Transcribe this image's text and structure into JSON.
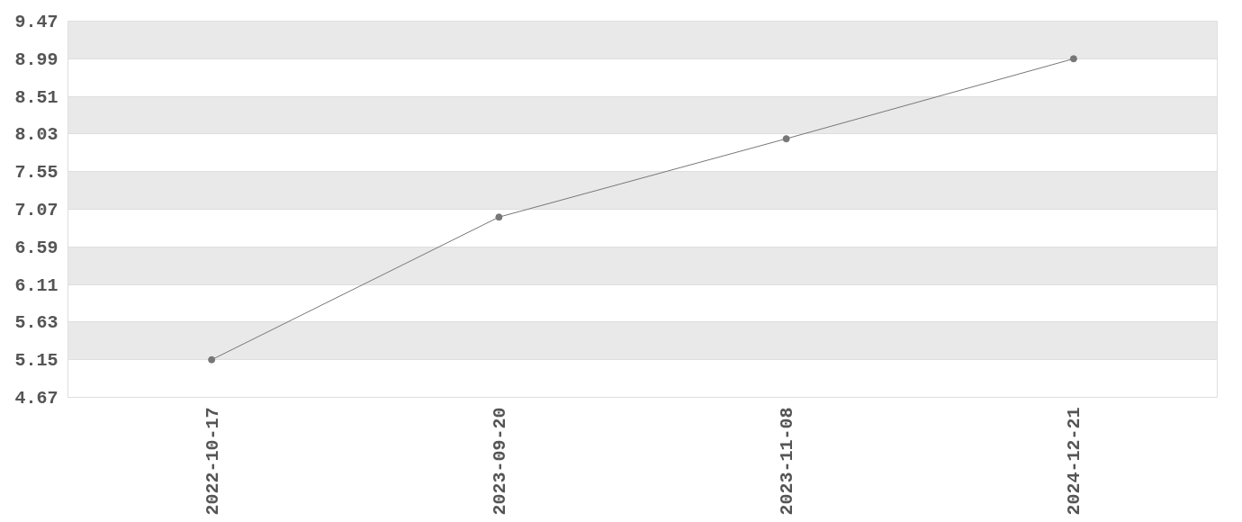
{
  "chart_data": {
    "type": "line",
    "categories": [
      "2022-10-17",
      "2023-09-20",
      "2023-11-08",
      "2024-12-21"
    ],
    "series": [
      {
        "color": "#777777",
        "values": [
          5.15,
          6.97,
          7.97,
          8.99
        ]
      }
    ],
    "ylim": [
      4.67,
      9.47
    ],
    "yticks": [
      4.67,
      5.15,
      5.63,
      6.11,
      6.59,
      7.07,
      7.55,
      8.03,
      8.51,
      8.99,
      9.47
    ],
    "grid": "y",
    "marker": "circle",
    "line_style": "solid"
  }
}
